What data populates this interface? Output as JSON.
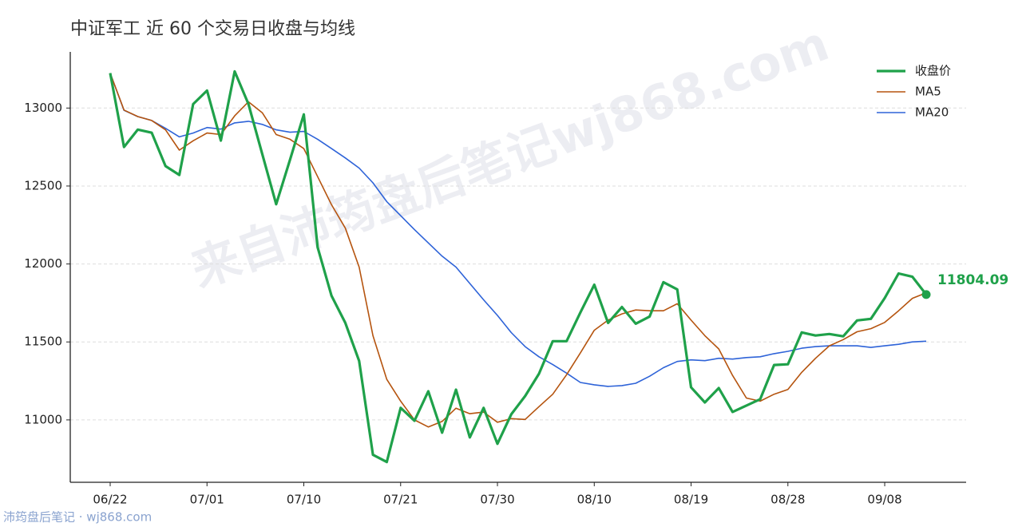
{
  "chart_data": {
    "type": "line",
    "title": "中证军工 近 60 个交易日收盘与均线",
    "watermark": "来自沛筠盘后笔记wj868.com",
    "footer": "沛筠盘后笔记 · wj868.com",
    "categories": [
      "06/22",
      null,
      null,
      null,
      null,
      null,
      null,
      "07/01",
      null,
      null,
      null,
      null,
      null,
      null,
      "07/10",
      null,
      null,
      null,
      null,
      null,
      null,
      "07/21",
      null,
      null,
      null,
      null,
      null,
      null,
      "07/30",
      null,
      null,
      null,
      null,
      null,
      null,
      "08/10",
      null,
      null,
      null,
      null,
      null,
      null,
      "08/19",
      null,
      null,
      null,
      null,
      null,
      null,
      "08/28",
      null,
      null,
      null,
      null,
      null,
      null,
      "09/08",
      null,
      null,
      null
    ],
    "series": [
      {
        "name": "收盘价",
        "color": "#1fa14a",
        "width": 3.2,
        "values": [
          13224,
          12750,
          12862,
          12842,
          12628,
          12571,
          13025,
          13112,
          12791,
          13235,
          13025,
          12704,
          12383,
          12668,
          12959,
          12107,
          11796,
          11622,
          11378,
          10776,
          10730,
          11077,
          10995,
          11184,
          10918,
          11194,
          10888,
          11077,
          10847,
          11036,
          11153,
          11296,
          11505,
          11505,
          11689,
          11867,
          11622,
          11724,
          11617,
          11663,
          11883,
          11837,
          11209,
          11112,
          11204,
          11051,
          11092,
          11133,
          11352,
          11357,
          11561,
          11541,
          11551,
          11536,
          11638,
          11648,
          11781,
          11939,
          11918,
          11804.09
        ],
        "value_labels": [
          null,
          null,
          null,
          null,
          null,
          null,
          null,
          null,
          null,
          null,
          null,
          null,
          null,
          null,
          null,
          null,
          null,
          null,
          null,
          null,
          null,
          null,
          null,
          null,
          null,
          null,
          null,
          null,
          null,
          null,
          null,
          null,
          null,
          null,
          null,
          null,
          null,
          null,
          null,
          null,
          null,
          null,
          null,
          null,
          null,
          null,
          null,
          null,
          null,
          null,
          null,
          null,
          null,
          null,
          null,
          null,
          null,
          null,
          null,
          "11804.09"
        ]
      },
      {
        "name": "MA5",
        "color": "#b5540f",
        "width": 1.6,
        "values": [
          13224,
          12987,
          12945,
          12920,
          12860,
          12730,
          12790,
          12840,
          12830,
          12950,
          13040,
          12970,
          12830,
          12800,
          12740,
          12560,
          12380,
          12230,
          11980,
          11540,
          11260,
          11120,
          11000,
          10955,
          10990,
          11075,
          11040,
          11050,
          10985,
          11008,
          11003,
          11085,
          11165,
          11290,
          11430,
          11575,
          11640,
          11680,
          11705,
          11700,
          11700,
          11745,
          11640,
          11540,
          11455,
          11285,
          11140,
          11120,
          11165,
          11195,
          11305,
          11395,
          11475,
          11515,
          11565,
          11585,
          11625,
          11700,
          11780,
          11815
        ]
      },
      {
        "name": "MA20",
        "color": "#2e63d8",
        "width": 1.6,
        "values": [
          13224,
          12985,
          12945,
          12920,
          12870,
          12815,
          12840,
          12875,
          12865,
          12905,
          12915,
          12895,
          12860,
          12845,
          12850,
          12800,
          12740,
          12680,
          12615,
          12520,
          12400,
          12310,
          12220,
          12135,
          12050,
          11980,
          11875,
          11770,
          11670,
          11560,
          11470,
          11405,
          11355,
          11300,
          11240,
          11225,
          11215,
          11220,
          11235,
          11280,
          11335,
          11375,
          11385,
          11380,
          11395,
          11390,
          11400,
          11405,
          11425,
          11440,
          11460,
          11470,
          11475,
          11475,
          11475,
          11465,
          11475,
          11485,
          11500,
          11505
        ]
      }
    ],
    "ylim": [
      10600,
      13360
    ],
    "yticks": [
      11000,
      11500,
      12000,
      12500,
      13000
    ],
    "grid": true,
    "legend": "upper right"
  }
}
